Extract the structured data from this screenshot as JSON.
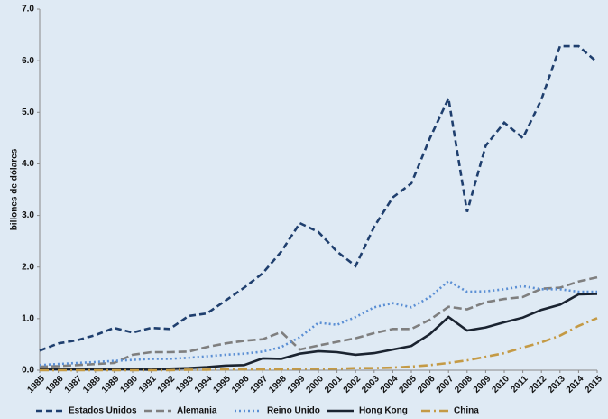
{
  "chart_data": {
    "type": "line",
    "y_label": "billones de dólares",
    "categories": [
      "1985",
      "1986",
      "1987",
      "1988",
      "1989",
      "1990",
      "1991",
      "1992",
      "1993",
      "1994",
      "1995",
      "1996",
      "1997",
      "1998",
      "1999",
      "2000",
      "2001",
      "2002",
      "2003",
      "2004",
      "2005",
      "2006",
      "2007",
      "2008",
      "2009",
      "2010",
      "2011",
      "2012",
      "2013",
      "2014",
      "2015"
    ],
    "series": [
      {
        "name": "Estados Unidos",
        "color": "#1f3f6e",
        "dash": "7 4",
        "values": [
          0.38,
          0.52,
          0.58,
          0.68,
          0.82,
          0.73,
          0.82,
          0.8,
          1.05,
          1.1,
          1.35,
          1.6,
          1.88,
          2.3,
          2.85,
          2.68,
          2.3,
          2.02,
          2.78,
          3.35,
          3.62,
          4.5,
          5.27,
          3.07,
          4.35,
          4.8,
          4.5,
          5.25,
          6.28,
          6.28,
          5.97
        ]
      },
      {
        "name": "Alemania",
        "color": "#7f7f7f",
        "dash": "9 4",
        "values": [
          0.07,
          0.08,
          0.1,
          0.12,
          0.14,
          0.3,
          0.35,
          0.35,
          0.36,
          0.45,
          0.52,
          0.57,
          0.6,
          0.74,
          0.4,
          0.48,
          0.55,
          0.62,
          0.72,
          0.8,
          0.8,
          0.98,
          1.23,
          1.18,
          1.32,
          1.38,
          1.42,
          1.58,
          1.6,
          1.72,
          1.8
        ]
      },
      {
        "name": "Reino Unido",
        "color": "#5b8fd4",
        "dash": "2 3",
        "values": [
          0.1,
          0.12,
          0.14,
          0.16,
          0.18,
          0.2,
          0.22,
          0.22,
          0.24,
          0.27,
          0.3,
          0.32,
          0.36,
          0.45,
          0.64,
          0.92,
          0.88,
          1.03,
          1.22,
          1.3,
          1.22,
          1.42,
          1.73,
          1.52,
          1.53,
          1.57,
          1.63,
          1.57,
          1.57,
          1.52,
          1.52
        ]
      },
      {
        "name": "Hong Kong",
        "color": "#1a2330",
        "dash": "",
        "values": [
          0.02,
          0.02,
          0.02,
          0.02,
          0.02,
          0.02,
          0.01,
          0.03,
          0.04,
          0.06,
          0.09,
          0.1,
          0.23,
          0.22,
          0.32,
          0.37,
          0.35,
          0.3,
          0.33,
          0.4,
          0.47,
          0.7,
          1.03,
          0.77,
          0.83,
          0.93,
          1.02,
          1.17,
          1.27,
          1.47,
          1.48
        ]
      },
      {
        "name": "China",
        "color": "#c49a45",
        "dash": "10 4 2 4",
        "values": [
          0,
          0,
          0,
          0,
          0,
          0,
          0,
          0,
          0.01,
          0.01,
          0.02,
          0.02,
          0.02,
          0.02,
          0.03,
          0.03,
          0.03,
          0.04,
          0.04,
          0.05,
          0.07,
          0.1,
          0.14,
          0.19,
          0.26,
          0.33,
          0.44,
          0.54,
          0.67,
          0.86,
          1.01
        ]
      }
    ],
    "ylim": [
      0,
      7
    ],
    "yticks": [
      {
        "value": 0,
        "label": "0.0"
      },
      {
        "value": 1,
        "label": "1.0"
      },
      {
        "value": 2,
        "label": "2.0"
      },
      {
        "value": 3,
        "label": "3.0"
      },
      {
        "value": 4,
        "label": "4.0"
      },
      {
        "value": 5,
        "label": "5.0"
      },
      {
        "value": 6,
        "label": "6.0"
      },
      {
        "value": 7,
        "label": "7.0"
      }
    ],
    "grid": false,
    "legend": "bottom"
  }
}
